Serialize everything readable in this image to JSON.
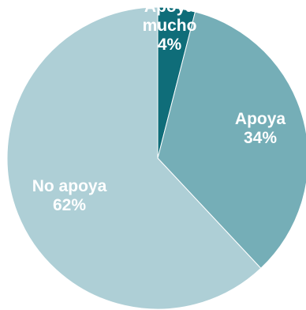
{
  "chart_data": {
    "type": "pie",
    "start_angle_deg": 0,
    "direction": "clockwise",
    "slices": [
      {
        "label_lines": [
          "Apoya",
          "mucho"
        ],
        "value": 4,
        "value_label": "4%",
        "color": "#0f6d79"
      },
      {
        "label_lines": [
          "Apoya"
        ],
        "value": 34,
        "value_label": "34%",
        "color": "#75aeb7"
      },
      {
        "label_lines": [
          "No apoya"
        ],
        "value": 62,
        "value_label": "62%",
        "color": "#aecfd6"
      }
    ]
  }
}
